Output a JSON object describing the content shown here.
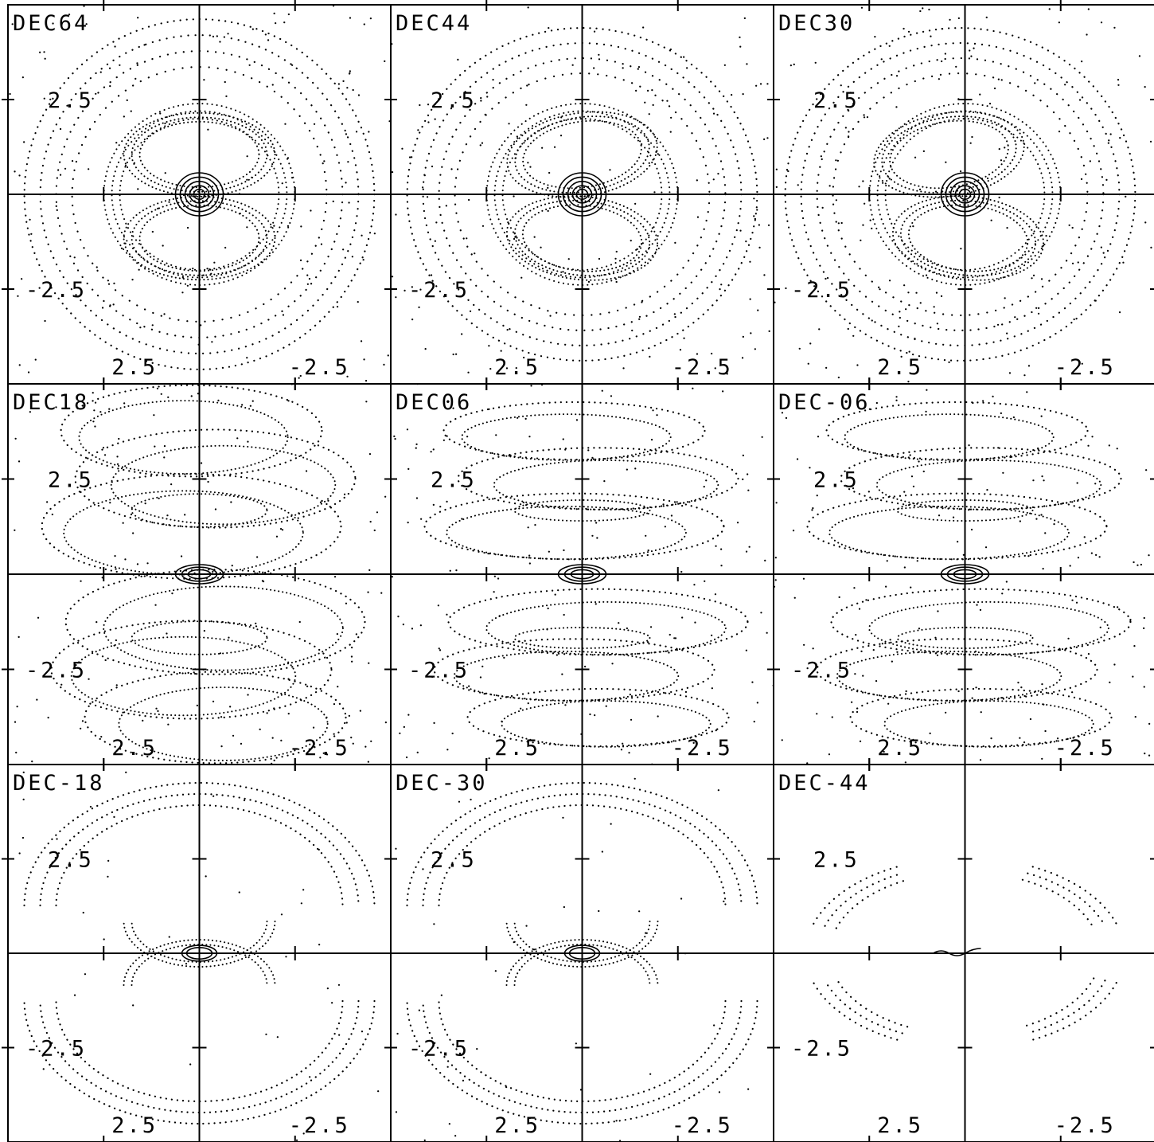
{
  "figure": {
    "grid": "3x3",
    "panels": [
      {
        "label": "DEC64",
        "y_pos": "2.5",
        "y_neg": "-2.5",
        "x_pos": "2.5",
        "x_neg": "-2.5",
        "pattern": "full-rings"
      },
      {
        "label": "DEC44",
        "y_pos": "2.5",
        "y_neg": "-2.5",
        "x_pos": "2.5",
        "x_neg": "-2.5",
        "pattern": "tilted-rings"
      },
      {
        "label": "DEC30",
        "y_pos": "2.5",
        "y_neg": "-2.5",
        "x_pos": "2.5",
        "x_neg": "-2.5",
        "pattern": "tilted-rings"
      },
      {
        "label": "DEC18",
        "y_pos": "2.5",
        "y_neg": "-2.5",
        "x_pos": "2.5",
        "x_neg": "-2.5",
        "pattern": "flattened-spirals"
      },
      {
        "label": "DEC06",
        "y_pos": "2.5",
        "y_neg": "-2.5",
        "x_pos": "2.5",
        "x_neg": "-2.5",
        "pattern": "flat-spirals"
      },
      {
        "label": "DEC-06",
        "y_pos": "2.5",
        "y_neg": "-2.5",
        "x_pos": "2.5",
        "x_neg": "-2.5",
        "pattern": "flat-spirals"
      },
      {
        "label": "DEC-18",
        "y_pos": "2.5",
        "y_neg": "-2.5",
        "x_pos": "2.5",
        "x_neg": "-2.5",
        "pattern": "arcs"
      },
      {
        "label": "DEC-30",
        "y_pos": "2.5",
        "y_neg": "-2.5",
        "x_pos": "2.5",
        "x_neg": "-2.5",
        "pattern": "arcs"
      },
      {
        "label": "DEC-44",
        "y_pos": "2.5",
        "y_neg": "-2.5",
        "x_pos": "2.5",
        "x_neg": "-2.5",
        "pattern": "sparse-arcs"
      }
    ]
  }
}
